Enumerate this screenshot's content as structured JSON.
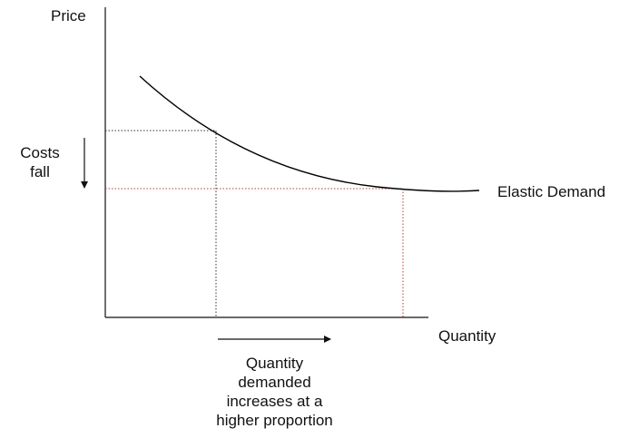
{
  "axes": {
    "y_label": "Price",
    "x_label": "Quantity"
  },
  "curve": {
    "label": "Elastic Demand",
    "color": "#000000"
  },
  "annotations": {
    "price_change": {
      "lines": [
        "Costs",
        "fall"
      ],
      "arrow": "down"
    },
    "quantity_change": {
      "lines": [
        "Quantity",
        "demanded",
        "increases at a",
        "higher proportion"
      ],
      "arrow": "right"
    }
  },
  "guide_lines": {
    "initial_color": "#333333",
    "new_color": "#c0392b"
  }
}
